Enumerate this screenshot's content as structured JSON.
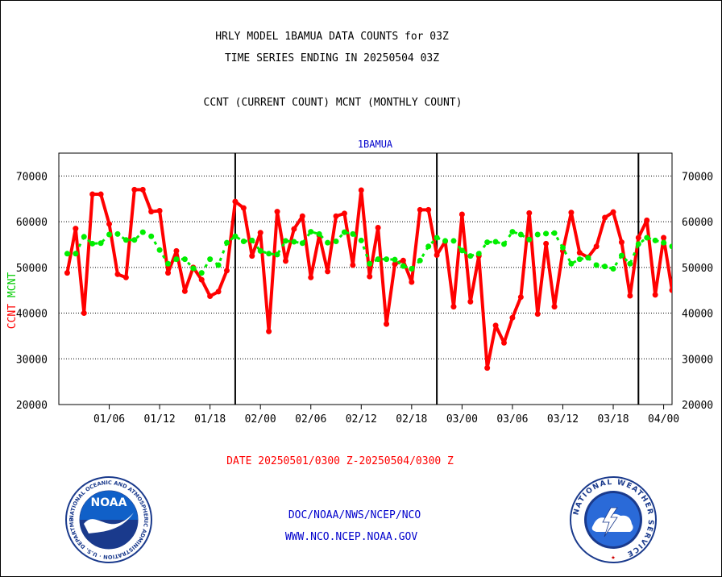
{
  "header": {
    "title_line1": "HRLY MODEL 1BAMUA DATA COUNTS for 03Z",
    "title_line2": "TIME SERIES ENDING IN 20250504 03Z",
    "subtitle": "CCNT (CURRENT COUNT) MCNT (MONTHLY COUNT)"
  },
  "footer": {
    "date_range": "DATE 20250501/0300 Z-20250504/0300 Z",
    "agency_path": "DOC/NOAA/NWS/NCEP/NCO",
    "website": "WWW.NCO.NCEP.NOAA.GOV"
  },
  "logos": {
    "noaa_text": "NOAA",
    "noaa_ring": "NATIONAL OCEANIC AND ATMOSPHERIC ADMINISTRATION · U.S. DEPARTMENT OF COMMERCE",
    "nws_ring": "NATIONAL WEATHER SERVICE"
  },
  "colors": {
    "ccnt": "#ff0000",
    "mcnt": "#00ee00",
    "frame": "#000000",
    "blue_text": "#0000cc"
  },
  "chart_data": {
    "type": "line",
    "title": "1BAMUA",
    "ylabel_left_parts": [
      "CCNT",
      "MCNT"
    ],
    "ylim": [
      20000,
      75000
    ],
    "yticks": [
      20000,
      30000,
      40000,
      50000,
      60000,
      70000
    ],
    "ytick_labels": [
      "20000",
      "30000",
      "40000",
      "50000",
      "60000",
      "70000"
    ],
    "xlim": [
      0,
      73
    ],
    "xtick_positions": [
      6,
      12,
      18,
      24,
      30,
      36,
      42,
      48,
      54,
      60,
      66,
      72
    ],
    "xtick_labels": [
      "01/06",
      "01/12",
      "01/18",
      "02/00",
      "02/06",
      "02/12",
      "02/18",
      "03/00",
      "03/06",
      "03/12",
      "03/18",
      "04/00"
    ],
    "month_dividers": [
      21,
      45,
      69
    ],
    "grid": true,
    "series": [
      {
        "name": "CCNT",
        "color": "#ff0000",
        "x": [
          1,
          2,
          3,
          4,
          5,
          6,
          7,
          8,
          9,
          10,
          11,
          12,
          13,
          14,
          15,
          16,
          17,
          18,
          19,
          20,
          21,
          22,
          23,
          24,
          25,
          26,
          27,
          28,
          29,
          30,
          31,
          32,
          33,
          34,
          35,
          36,
          37,
          38,
          39,
          40,
          41,
          42,
          43,
          44,
          45,
          46,
          47,
          48,
          49,
          50,
          51,
          52,
          53,
          54,
          55,
          56,
          57,
          58,
          59,
          60,
          61,
          62,
          63,
          64,
          65,
          66,
          67,
          68,
          69,
          70,
          71,
          72,
          73
        ],
        "values": [
          48800,
          58500,
          40000,
          66000,
          66000,
          59500,
          48500,
          47800,
          67000,
          67000,
          62200,
          62400,
          48800,
          53600,
          44800,
          50000,
          47300,
          43700,
          44700,
          49300,
          64400,
          63000,
          52500,
          57600,
          36000,
          62200,
          51400,
          58400,
          61200,
          47800,
          57000,
          49100,
          61200,
          61800,
          50500,
          66900,
          48000,
          58700,
          37600,
          50700,
          51500,
          46800,
          62600,
          62600,
          52700,
          55700,
          41400,
          61600,
          42500,
          52500,
          28000,
          37300,
          33500,
          39000,
          43500,
          61900,
          39800,
          55200,
          41400,
          53600,
          62000,
          53200,
          52200,
          54600,
          60900,
          62100,
          55500,
          43800,
          56500,
          60300,
          44000,
          56500,
          45000
        ]
      },
      {
        "name": "MCNT",
        "color": "#00ee00",
        "x": [
          1,
          2,
          3,
          4,
          5,
          6,
          7,
          8,
          9,
          10,
          11,
          12,
          13,
          14,
          15,
          16,
          17,
          18,
          19,
          20,
          21,
          22,
          23,
          24,
          25,
          26,
          27,
          28,
          29,
          30,
          31,
          32,
          33,
          34,
          35,
          36,
          37,
          38,
          39,
          40,
          41,
          42,
          43,
          44,
          45,
          46,
          47,
          48,
          49,
          50,
          51,
          52,
          53,
          54,
          55,
          56,
          57,
          58,
          59,
          60,
          61,
          62,
          63,
          64,
          65,
          66,
          67,
          68,
          69,
          70,
          71,
          72,
          73
        ],
        "values": [
          53000,
          53000,
          56700,
          55200,
          55300,
          57200,
          57300,
          56000,
          56000,
          57700,
          56800,
          53800,
          50800,
          51800,
          51800,
          49800,
          48800,
          51800,
          50500,
          55400,
          56800,
          55700,
          55900,
          53600,
          53000,
          52800,
          55800,
          55600,
          55300,
          57800,
          57300,
          55400,
          55700,
          57700,
          57300,
          55900,
          50800,
          51800,
          51800,
          51700,
          50300,
          49700,
          51500,
          54600,
          56500,
          55800,
          55800,
          53700,
          52500,
          53000,
          55500,
          55600,
          55100,
          57800,
          57200,
          56100,
          57200,
          57400,
          57500,
          54300,
          50800,
          51800,
          52100,
          50500,
          50200,
          49700,
          52600,
          50800,
          55100,
          56500,
          55900,
          55400,
          54600
        ]
      }
    ]
  }
}
